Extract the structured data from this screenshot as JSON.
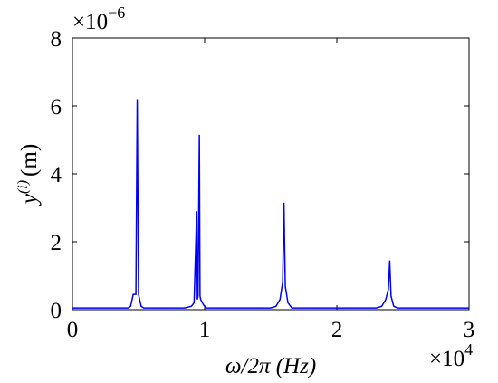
{
  "chart_data": {
    "type": "line",
    "x": [
      0,
      0.42,
      0.44,
      0.46,
      0.48,
      0.49,
      0.5,
      0.52,
      0.54,
      0.56,
      0.85,
      0.9,
      0.92,
      0.94,
      0.945,
      0.95,
      0.96,
      0.965,
      0.97,
      0.99,
      1.01,
      1.03,
      1.5,
      1.54,
      1.57,
      1.59,
      1.6,
      1.61,
      1.63,
      1.66,
      2.3,
      2.34,
      2.37,
      2.39,
      2.4,
      2.41,
      2.43,
      2.46,
      3.0
    ],
    "values": [
      0.05,
      0.05,
      0.1,
      0.45,
      0.45,
      6.2,
      0.45,
      0.1,
      0.05,
      0.05,
      0.05,
      0.1,
      0.2,
      2.9,
      0.3,
      0.4,
      5.15,
      0.4,
      0.3,
      0.15,
      0.05,
      0.05,
      0.05,
      0.1,
      0.3,
      0.8,
      3.15,
      0.7,
      0.2,
      0.05,
      0.05,
      0.1,
      0.3,
      0.6,
      1.45,
      0.4,
      0.1,
      0.05,
      0.05
    ],
    "color": "#0000ff",
    "xlim": [
      0,
      3
    ],
    "xticks": [
      0,
      1,
      2,
      3
    ],
    "ylim": [
      0,
      8
    ],
    "yticks": [
      0,
      2,
      4,
      6,
      8
    ],
    "x_multiplier": "×10",
    "x_exponent": "4",
    "y_multiplier": "×10",
    "y_exponent": "−6",
    "xlabel": "ω/2π (Hz)",
    "ylabel": "y",
    "ylabel_sup": "(i)",
    "ylabel_unit": "(m)"
  }
}
